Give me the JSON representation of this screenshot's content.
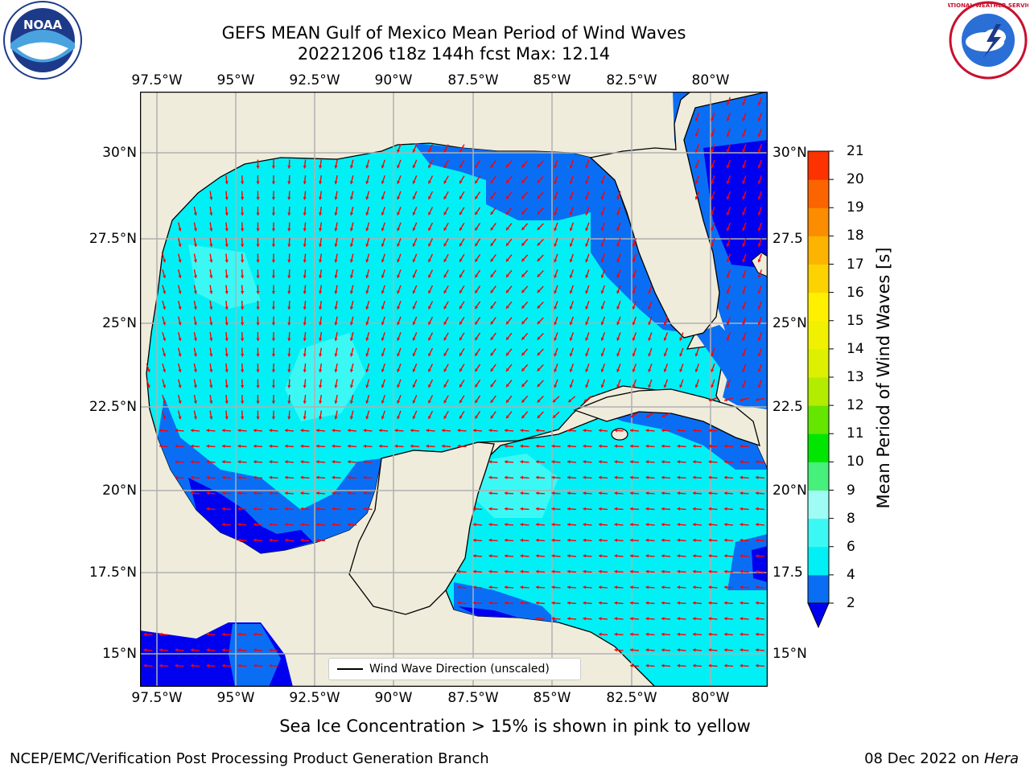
{
  "title": {
    "line1": "GEFS MEAN Gulf of Mexico Mean Period of Wind Waves",
    "line2": "20221206 t18z 144h fcst   Max: 12.14"
  },
  "map": {
    "lon_labels": [
      "97.5°W",
      "95°W",
      "92.5°W",
      "90°W",
      "87.5°W",
      "85°W",
      "82.5°W",
      "80°W"
    ],
    "lat_labels_left": [
      "30°N",
      "27.5°N",
      "25°N",
      "22.5°N",
      "20°N",
      "17.5°N",
      "15°N"
    ],
    "lat_labels_right": [
      "30°N",
      "27.5",
      "25°N",
      "22.5",
      "20°N",
      "17.5",
      "15°N"
    ],
    "land_color": "#efecdc",
    "legend_label": "Wind Wave Direction (unscaled)",
    "arrow_color": "#ff0000"
  },
  "colorbar": {
    "label": "Mean Period of Wind Waves [s]",
    "ticks": [
      "2",
      "4",
      "6",
      "8",
      "9",
      "10",
      "11",
      "12",
      "13",
      "14",
      "15",
      "16",
      "17",
      "18",
      "19",
      "20",
      "21"
    ],
    "colors": [
      "#0a6ef5",
      "#00f0f5",
      "#3cf8f5",
      "#9efcf5",
      "#46f07a",
      "#00e600",
      "#64e600",
      "#b4ec00",
      "#dcf000",
      "#f0f000",
      "#fff000",
      "#fcd200",
      "#fcb400",
      "#fc8c00",
      "#fc6400",
      "#fc3200",
      "#fc0000"
    ],
    "underflow_color": "#0000f0"
  },
  "note": "Sea Ice Concentration > 15% is shown in pink to yellow",
  "footer": {
    "left": "NCEP/EMC/Verification Post Processing Product Generation Branch",
    "right_date": "08 Dec 2022 on ",
    "right_host": "Hera"
  },
  "logos": {
    "noaa_text": "NOAA",
    "nws_text": "NATIONAL WEATHER SERVICE"
  }
}
